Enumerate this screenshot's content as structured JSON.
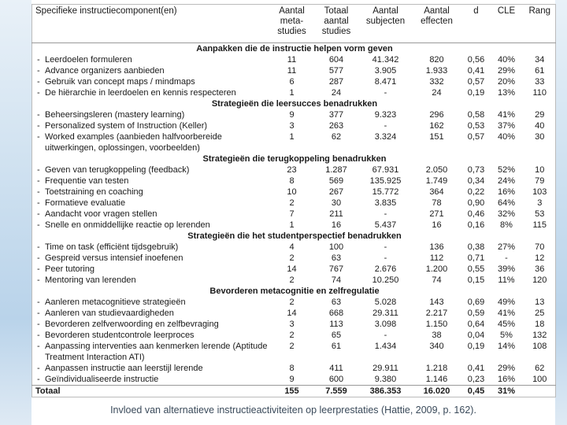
{
  "table": {
    "headers": [
      "Specifieke instructiecomponent(en)",
      "Aantal\nmeta-\nstudies",
      "Totaal\naantal\nstudies",
      "Aantal\nsubjecten",
      "Aantal\neffecten",
      "d",
      "CLE",
      "Rang"
    ],
    "sections": [
      {
        "title": "Aanpakken die de instructie helpen vorm geven",
        "rows": [
          {
            "label": "Leerdoelen formuleren",
            "cells": [
              "11",
              "604",
              "41.342",
              "820",
              "0,56",
              "40%",
              "34"
            ]
          },
          {
            "label": "Advance organizers aanbieden",
            "cells": [
              "11",
              "577",
              "3.905",
              "1.933",
              "0,41",
              "29%",
              "61"
            ]
          },
          {
            "label": "Gebruik van concept maps / mindmaps",
            "cells": [
              "6",
              "287",
              "8.471",
              "332",
              "0,57",
              "20%",
              "33"
            ]
          },
          {
            "label": "De hiërarchie in leerdoelen en kennis respecteren",
            "cells": [
              "1",
              "24",
              "-",
              "24",
              "0,19",
              "13%",
              "110"
            ]
          }
        ]
      },
      {
        "title": "Strategieën die leersucces benadrukken",
        "rows": [
          {
            "label": "Beheersingsleren (mastery learning)",
            "cells": [
              "9",
              "377",
              "9.323",
              "296",
              "0,58",
              "41%",
              "29"
            ]
          },
          {
            "label": "Personalized system of Instruction (Keller)",
            "cells": [
              "3",
              "263",
              "-",
              "162",
              "0,53",
              "37%",
              "40"
            ]
          },
          {
            "label": "Worked examples (aanbieden halfvoorbereide uitwerkingen, oplossingen, voorbeelden)",
            "cells": [
              "1",
              "62",
              "3.324",
              "151",
              "0,57",
              "40%",
              "30"
            ]
          }
        ]
      },
      {
        "title": "Strategieën die terugkoppeling benadrukken",
        "rows": [
          {
            "label": "Geven van terugkoppeling (feedback)",
            "cells": [
              "23",
              "1.287",
              "67.931",
              "2.050",
              "0,73",
              "52%",
              "10"
            ]
          },
          {
            "label": "Frequentie van testen",
            "cells": [
              "8",
              "569",
              "135.925",
              "1.749",
              "0,34",
              "24%",
              "79"
            ]
          },
          {
            "label": "Toetstraining en coaching",
            "cells": [
              "10",
              "267",
              "15.772",
              "364",
              "0,22",
              "16%",
              "103"
            ]
          },
          {
            "label": "Formatieve evaluatie",
            "cells": [
              "2",
              "30",
              "3.835",
              "78",
              "0,90",
              "64%",
              "3"
            ]
          },
          {
            "label": "Aandacht voor vragen stellen",
            "cells": [
              "7",
              "211",
              "-",
              "271",
              "0,46",
              "32%",
              "53"
            ]
          },
          {
            "label": "Snelle en onmiddellijke reactie op lerenden",
            "cells": [
              "1",
              "16",
              "5.437",
              "16",
              "0,16",
              "8%",
              "115"
            ]
          }
        ]
      },
      {
        "title": "Strategieën die het studentperspectief benadrukken",
        "rows": [
          {
            "label": "Time on task (efficiënt tijdsgebruik)",
            "cells": [
              "4",
              "100",
              "-",
              "136",
              "0,38",
              "27%",
              "70"
            ]
          },
          {
            "label": "Gespreid versus intensief inoefenen",
            "cells": [
              "2",
              "63",
              "-",
              "112",
              "0,71",
              "-",
              "12"
            ]
          },
          {
            "label": "Peer tutoring",
            "cells": [
              "14",
              "767",
              "2.676",
              "1.200",
              "0,55",
              "39%",
              "36"
            ]
          },
          {
            "label": "Mentoring van lerenden",
            "cells": [
              "2",
              "74",
              "10.250",
              "74",
              "0,15",
              "11%",
              "120"
            ]
          }
        ]
      },
      {
        "title": "Bevorderen metacognitie en zelfregulatie",
        "rows": [
          {
            "label": "Aanleren metacognitieve strategieën",
            "cells": [
              "2",
              "63",
              "5.028",
              "143",
              "0,69",
              "49%",
              "13"
            ]
          },
          {
            "label": "Aanleren van studievaardigheden",
            "cells": [
              "14",
              "668",
              "29.311",
              "2.217",
              "0,59",
              "41%",
              "25"
            ]
          },
          {
            "label": "Bevorderen zelfverwoording en zelfbevraging",
            "cells": [
              "3",
              "113",
              "3.098",
              "1.150",
              "0,64",
              "45%",
              "18"
            ]
          },
          {
            "label": "Bevorderen studentcontrole leerproces",
            "cells": [
              "2",
              "65",
              "-",
              "38",
              "0,04",
              "5%",
              "132"
            ]
          },
          {
            "label": "Aanpassing interventies aan kenmerken lerende (Aptitude Treatment Interaction ATI)",
            "cells": [
              "2",
              "61",
              "1.434",
              "340",
              "0,19",
              "14%",
              "108"
            ]
          },
          {
            "label": "Aanpassen instructie aan leerstijl lerende",
            "cells": [
              "8",
              "411",
              "29.911",
              "1.218",
              "0,41",
              "29%",
              "62"
            ]
          },
          {
            "label": "Geïndividualiseerde instructie",
            "cells": [
              "9",
              "600",
              "9.380",
              "1.146",
              "0,23",
              "16%",
              "100"
            ]
          }
        ]
      }
    ],
    "total": {
      "label": "Totaal",
      "cells": [
        "155",
        "7.559",
        "386.353",
        "16.020",
        "0,45",
        "31%"
      ]
    }
  },
  "caption": "Invloed van alternatieve instructieactiviteiten op leerprestaties (Hattie, 2009, p. 162)."
}
